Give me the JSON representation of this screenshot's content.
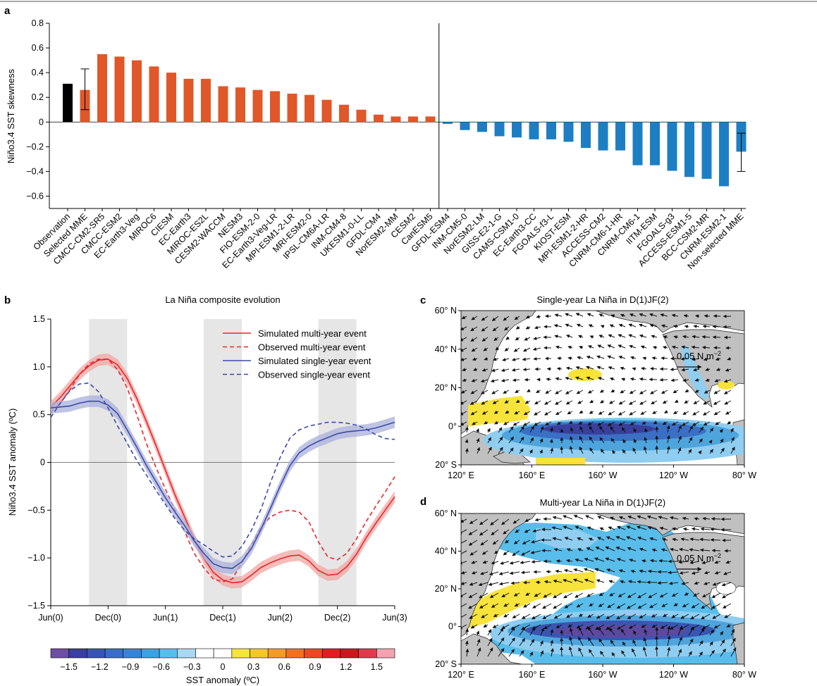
{
  "panels": {
    "a": "a",
    "b": "b",
    "c": "c",
    "d": "d"
  },
  "colors": {
    "observation": "#000000",
    "selected": "#e0572a",
    "nonselected": "#1c7fc3",
    "sim_multi": "#e8262a",
    "sim_single": "#3c4aa5",
    "shade_multi": "#f2a5a3",
    "shade_single": "#aab0dc",
    "land": "#c0c0c0",
    "highlight_yellow": "#f7e33a"
  },
  "colorbar": {
    "title": "SST anomaly (ºC)",
    "tick_labels": [
      "−1.5",
      "−1.2",
      "−0.9",
      "−0.6",
      "−0.3",
      "0",
      "0.3",
      "0.6",
      "0.9",
      "1.2",
      "1.5"
    ],
    "colors": [
      "#6e4ea3",
      "#3a3f9c",
      "#3955b2",
      "#3b6dc6",
      "#3a83d3",
      "#3ea0de",
      "#58bdeb",
      "#a9d8f2",
      "#ffffff",
      "#ffffff",
      "#f7e43a",
      "#f5c52c",
      "#f29a2a",
      "#ef7124",
      "#e94a22",
      "#df2020",
      "#c81a1e",
      "#de3c4e",
      "#f3a3b0"
    ]
  },
  "map_c": {
    "title": "Single-year La Niña in D(1)JF(2)",
    "lat_labels": [
      "60° N",
      "40° N",
      "20° N",
      "0°",
      "20° S"
    ],
    "lon_labels": [
      "120° E",
      "160° E",
      "160° W",
      "120° W",
      "80° W"
    ],
    "vector_ref": "0.05 N m",
    "vector_ref_sup": "−2"
  },
  "map_d": {
    "title": "Multi-year La Niña in D(1)JF(2)",
    "lat_labels": [
      "60° N",
      "40° N",
      "20° N",
      "0°",
      "20° S"
    ],
    "lon_labels": [
      "120° E",
      "160° E",
      "160° W",
      "120° W",
      "80° W"
    ],
    "vector_ref": "0.05 N m",
    "vector_ref_sup": "−2"
  },
  "chart_data": [
    {
      "type": "bar",
      "panel": "a",
      "ylabel": "Niño3.4 SST skewness",
      "ylim": [
        -0.7,
        0.8
      ],
      "yticks": [
        -0.6,
        -0.4,
        -0.2,
        0,
        0.2,
        0.4,
        0.6,
        0.8
      ],
      "grid": false,
      "categories": [
        "Observation",
        "Selected MME",
        "CMCC-CM2-SR5",
        "CMCC-ESM2",
        "EC-Earth3-Veg",
        "MIROC6",
        "CIESM",
        "EC-Earth3",
        "MIROC-ES2L",
        "CESM2-WACCM",
        "NESM3",
        "FIO-ESM-2-0",
        "EC-Earth3-Veg-LR",
        "MPI-ESM1-2-LR",
        "MRI-ESM2-0",
        "IPSL-CM6A-LR",
        "INM-CM4-8",
        "UKESM1-0-LL",
        "GFDL-CM4",
        "NorESM2-MM",
        "CESM2",
        "CanESM5",
        "GFDL-ESM4",
        "INM-CM5-0",
        "NorESM2-LM",
        "GISS-E2-1-G",
        "CAMS-CSM1-0",
        "EC-Earth3-CC",
        "FGOALS-f3-L",
        "KIOST-ESM",
        "MPI-ESM1-2-HR",
        "ACCESS-CM2",
        "CNRM-CM6-1-HR",
        "CNRM-CM6-1",
        "IITM-ESM",
        "FGOALS-g3",
        "ACCESS-ESM1-5",
        "BCC-CSM2-MR",
        "CNRM-ESM2-1",
        "Non-selected MME"
      ],
      "values": [
        0.31,
        0.26,
        0.55,
        0.53,
        0.5,
        0.45,
        0.4,
        0.35,
        0.35,
        0.29,
        0.28,
        0.26,
        0.25,
        0.23,
        0.22,
        0.18,
        0.14,
        0.1,
        0.06,
        0.045,
        0.045,
        0.045,
        -0.015,
        -0.065,
        -0.08,
        -0.115,
        -0.125,
        -0.14,
        -0.14,
        -0.16,
        -0.21,
        -0.23,
        -0.23,
        -0.35,
        -0.35,
        -0.395,
        -0.445,
        -0.46,
        -0.52,
        -0.24
      ],
      "groups": [
        "observation",
        "selected",
        "selected",
        "selected",
        "selected",
        "selected",
        "selected",
        "selected",
        "selected",
        "selected",
        "selected",
        "selected",
        "selected",
        "selected",
        "selected",
        "selected",
        "selected",
        "selected",
        "selected",
        "selected",
        "selected",
        "selected",
        "nonselected",
        "nonselected",
        "nonselected",
        "nonselected",
        "nonselected",
        "nonselected",
        "nonselected",
        "nonselected",
        "nonselected",
        "nonselected",
        "nonselected",
        "nonselected",
        "nonselected",
        "nonselected",
        "nonselected",
        "nonselected",
        "nonselected",
        "nonselected"
      ],
      "error_bars": [
        {
          "category": "Selected MME",
          "low": 0.1,
          "high": 0.43
        },
        {
          "category": "Non-selected MME",
          "low": -0.4,
          "high": -0.09
        }
      ]
    },
    {
      "type": "line",
      "panel": "b",
      "title": "La Niña composite evolution",
      "ylabel": "Niño3.4 SST anomaly (ºC)",
      "ylim": [
        -1.5,
        1.5
      ],
      "yticks": [
        -1.5,
        -1.0,
        -0.5,
        0,
        0.5,
        1.0,
        1.5
      ],
      "ytick_labels": [
        "−1.5",
        "−1.0",
        "−0.5",
        "0",
        "0.5",
        "1.0",
        "1.5"
      ],
      "xlim": [
        0,
        36
      ],
      "xticks": [
        0,
        6,
        12,
        18,
        24,
        30,
        36
      ],
      "xtick_labels": [
        "Jun(0)",
        "Dec(0)",
        "Jun(1)",
        "Dec(1)",
        "Jun(2)",
        "Dec(2)",
        "Jun(3)"
      ],
      "legend_position": "top-right",
      "shaded_months": [
        [
          4,
          8
        ],
        [
          16,
          20
        ],
        [
          28,
          32
        ]
      ],
      "x": [
        0,
        1,
        2,
        3,
        4,
        5,
        6,
        7,
        8,
        9,
        10,
        11,
        12,
        13,
        14,
        15,
        16,
        17,
        18,
        19,
        20,
        21,
        22,
        23,
        24,
        25,
        26,
        27,
        28,
        29,
        30,
        31,
        32,
        33,
        34,
        35,
        36
      ],
      "series": [
        {
          "name": "Simulated multi-year event",
          "style": "solid",
          "color": "#e8262a",
          "values": [
            0.58,
            0.68,
            0.8,
            0.92,
            1.01,
            1.07,
            1.08,
            1.02,
            0.88,
            0.67,
            0.43,
            0.18,
            -0.08,
            -0.34,
            -0.57,
            -0.8,
            -1.0,
            -1.15,
            -1.23,
            -1.26,
            -1.25,
            -1.18,
            -1.1,
            -1.05,
            -1.01,
            -0.98,
            -0.97,
            -1.03,
            -1.13,
            -1.18,
            -1.17,
            -1.09,
            -0.96,
            -0.79,
            -0.64,
            -0.5,
            -0.36
          ],
          "band": 0.06
        },
        {
          "name": "Observed multi-year event",
          "style": "dashed",
          "color": "#e8262a",
          "values": [
            0.52,
            0.62,
            0.76,
            0.92,
            1.03,
            1.08,
            1.08,
            0.97,
            0.78,
            0.5,
            0.2,
            -0.05,
            -0.28,
            -0.5,
            -0.72,
            -0.95,
            -1.1,
            -1.22,
            -1.25,
            -1.22,
            -1.05,
            -0.86,
            -0.68,
            -0.57,
            -0.52,
            -0.5,
            -0.52,
            -0.62,
            -0.83,
            -0.99,
            -1.02,
            -0.95,
            -0.8,
            -0.62,
            -0.46,
            -0.31,
            -0.15
          ]
        },
        {
          "name": "Simulated single-year event",
          "style": "solid",
          "color": "#3c4aa5",
          "values": [
            0.57,
            0.58,
            0.59,
            0.62,
            0.64,
            0.64,
            0.6,
            0.51,
            0.34,
            0.16,
            -0.03,
            -0.2,
            -0.37,
            -0.52,
            -0.66,
            -0.82,
            -0.95,
            -1.06,
            -1.1,
            -1.11,
            -1.04,
            -0.9,
            -0.7,
            -0.48,
            -0.25,
            -0.04,
            0.1,
            0.17,
            0.22,
            0.26,
            0.3,
            0.32,
            0.33,
            0.34,
            0.36,
            0.39,
            0.42
          ],
          "band": 0.06
        },
        {
          "name": "Observed single-year event",
          "style": "dashed",
          "color": "#3c4aa5",
          "values": [
            0.47,
            0.62,
            0.75,
            0.82,
            0.83,
            0.74,
            0.57,
            0.38,
            0.2,
            0.02,
            -0.13,
            -0.29,
            -0.44,
            -0.59,
            -0.71,
            -0.8,
            -0.86,
            -0.93,
            -0.99,
            -0.98,
            -0.88,
            -0.71,
            -0.49,
            -0.21,
            0.05,
            0.25,
            0.34,
            0.38,
            0.4,
            0.42,
            0.42,
            0.41,
            0.39,
            0.35,
            0.29,
            0.25,
            0.24
          ]
        }
      ]
    }
  ]
}
